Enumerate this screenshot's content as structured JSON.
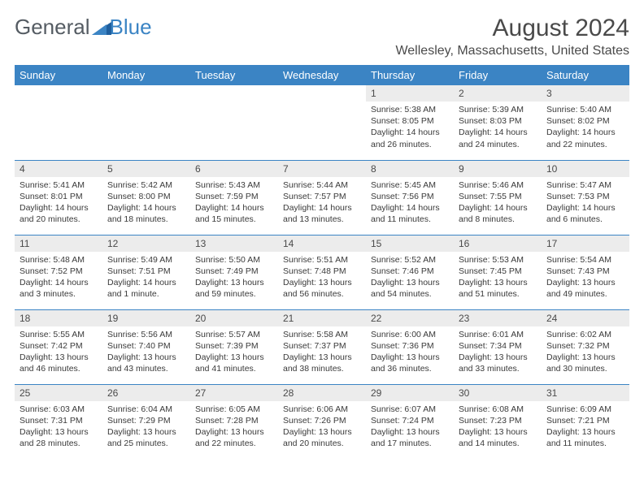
{
  "logo": {
    "text1": "General",
    "text2": "Blue"
  },
  "title": "August 2024",
  "location": "Wellesley, Massachusetts, United States",
  "day_headers": [
    "Sunday",
    "Monday",
    "Tuesday",
    "Wednesday",
    "Thursday",
    "Friday",
    "Saturday"
  ],
  "colors": {
    "header_bg": "#3b84c4",
    "header_text": "#ffffff",
    "daynum_bg": "#ececec",
    "cell_border": "#3b84c4",
    "text": "#3a3a3a",
    "title_text": "#4a4a4a",
    "logo_gray": "#555c63",
    "logo_blue": "#3b84c4"
  },
  "weeks": [
    [
      {
        "n": "",
        "lines": []
      },
      {
        "n": "",
        "lines": []
      },
      {
        "n": "",
        "lines": []
      },
      {
        "n": "",
        "lines": []
      },
      {
        "n": "1",
        "lines": [
          "Sunrise: 5:38 AM",
          "Sunset: 8:05 PM",
          "Daylight: 14 hours",
          "and 26 minutes."
        ]
      },
      {
        "n": "2",
        "lines": [
          "Sunrise: 5:39 AM",
          "Sunset: 8:03 PM",
          "Daylight: 14 hours",
          "and 24 minutes."
        ]
      },
      {
        "n": "3",
        "lines": [
          "Sunrise: 5:40 AM",
          "Sunset: 8:02 PM",
          "Daylight: 14 hours",
          "and 22 minutes."
        ]
      }
    ],
    [
      {
        "n": "4",
        "lines": [
          "Sunrise: 5:41 AM",
          "Sunset: 8:01 PM",
          "Daylight: 14 hours",
          "and 20 minutes."
        ]
      },
      {
        "n": "5",
        "lines": [
          "Sunrise: 5:42 AM",
          "Sunset: 8:00 PM",
          "Daylight: 14 hours",
          "and 18 minutes."
        ]
      },
      {
        "n": "6",
        "lines": [
          "Sunrise: 5:43 AM",
          "Sunset: 7:59 PM",
          "Daylight: 14 hours",
          "and 15 minutes."
        ]
      },
      {
        "n": "7",
        "lines": [
          "Sunrise: 5:44 AM",
          "Sunset: 7:57 PM",
          "Daylight: 14 hours",
          "and 13 minutes."
        ]
      },
      {
        "n": "8",
        "lines": [
          "Sunrise: 5:45 AM",
          "Sunset: 7:56 PM",
          "Daylight: 14 hours",
          "and 11 minutes."
        ]
      },
      {
        "n": "9",
        "lines": [
          "Sunrise: 5:46 AM",
          "Sunset: 7:55 PM",
          "Daylight: 14 hours",
          "and 8 minutes."
        ]
      },
      {
        "n": "10",
        "lines": [
          "Sunrise: 5:47 AM",
          "Sunset: 7:53 PM",
          "Daylight: 14 hours",
          "and 6 minutes."
        ]
      }
    ],
    [
      {
        "n": "11",
        "lines": [
          "Sunrise: 5:48 AM",
          "Sunset: 7:52 PM",
          "Daylight: 14 hours",
          "and 3 minutes."
        ]
      },
      {
        "n": "12",
        "lines": [
          "Sunrise: 5:49 AM",
          "Sunset: 7:51 PM",
          "Daylight: 14 hours",
          "and 1 minute."
        ]
      },
      {
        "n": "13",
        "lines": [
          "Sunrise: 5:50 AM",
          "Sunset: 7:49 PM",
          "Daylight: 13 hours",
          "and 59 minutes."
        ]
      },
      {
        "n": "14",
        "lines": [
          "Sunrise: 5:51 AM",
          "Sunset: 7:48 PM",
          "Daylight: 13 hours",
          "and 56 minutes."
        ]
      },
      {
        "n": "15",
        "lines": [
          "Sunrise: 5:52 AM",
          "Sunset: 7:46 PM",
          "Daylight: 13 hours",
          "and 54 minutes."
        ]
      },
      {
        "n": "16",
        "lines": [
          "Sunrise: 5:53 AM",
          "Sunset: 7:45 PM",
          "Daylight: 13 hours",
          "and 51 minutes."
        ]
      },
      {
        "n": "17",
        "lines": [
          "Sunrise: 5:54 AM",
          "Sunset: 7:43 PM",
          "Daylight: 13 hours",
          "and 49 minutes."
        ]
      }
    ],
    [
      {
        "n": "18",
        "lines": [
          "Sunrise: 5:55 AM",
          "Sunset: 7:42 PM",
          "Daylight: 13 hours",
          "and 46 minutes."
        ]
      },
      {
        "n": "19",
        "lines": [
          "Sunrise: 5:56 AM",
          "Sunset: 7:40 PM",
          "Daylight: 13 hours",
          "and 43 minutes."
        ]
      },
      {
        "n": "20",
        "lines": [
          "Sunrise: 5:57 AM",
          "Sunset: 7:39 PM",
          "Daylight: 13 hours",
          "and 41 minutes."
        ]
      },
      {
        "n": "21",
        "lines": [
          "Sunrise: 5:58 AM",
          "Sunset: 7:37 PM",
          "Daylight: 13 hours",
          "and 38 minutes."
        ]
      },
      {
        "n": "22",
        "lines": [
          "Sunrise: 6:00 AM",
          "Sunset: 7:36 PM",
          "Daylight: 13 hours",
          "and 36 minutes."
        ]
      },
      {
        "n": "23",
        "lines": [
          "Sunrise: 6:01 AM",
          "Sunset: 7:34 PM",
          "Daylight: 13 hours",
          "and 33 minutes."
        ]
      },
      {
        "n": "24",
        "lines": [
          "Sunrise: 6:02 AM",
          "Sunset: 7:32 PM",
          "Daylight: 13 hours",
          "and 30 minutes."
        ]
      }
    ],
    [
      {
        "n": "25",
        "lines": [
          "Sunrise: 6:03 AM",
          "Sunset: 7:31 PM",
          "Daylight: 13 hours",
          "and 28 minutes."
        ]
      },
      {
        "n": "26",
        "lines": [
          "Sunrise: 6:04 AM",
          "Sunset: 7:29 PM",
          "Daylight: 13 hours",
          "and 25 minutes."
        ]
      },
      {
        "n": "27",
        "lines": [
          "Sunrise: 6:05 AM",
          "Sunset: 7:28 PM",
          "Daylight: 13 hours",
          "and 22 minutes."
        ]
      },
      {
        "n": "28",
        "lines": [
          "Sunrise: 6:06 AM",
          "Sunset: 7:26 PM",
          "Daylight: 13 hours",
          "and 20 minutes."
        ]
      },
      {
        "n": "29",
        "lines": [
          "Sunrise: 6:07 AM",
          "Sunset: 7:24 PM",
          "Daylight: 13 hours",
          "and 17 minutes."
        ]
      },
      {
        "n": "30",
        "lines": [
          "Sunrise: 6:08 AM",
          "Sunset: 7:23 PM",
          "Daylight: 13 hours",
          "and 14 minutes."
        ]
      },
      {
        "n": "31",
        "lines": [
          "Sunrise: 6:09 AM",
          "Sunset: 7:21 PM",
          "Daylight: 13 hours",
          "and 11 minutes."
        ]
      }
    ]
  ]
}
